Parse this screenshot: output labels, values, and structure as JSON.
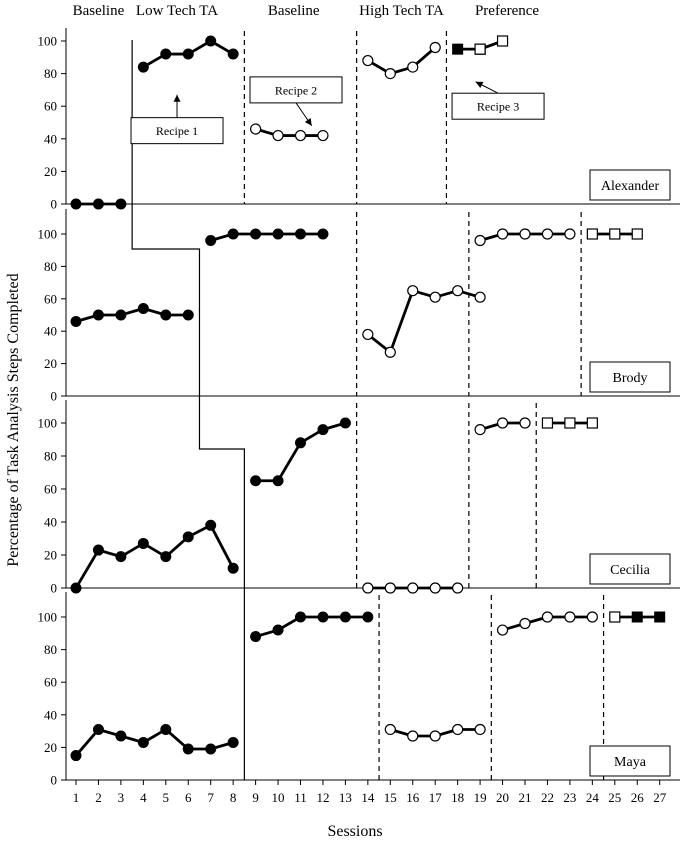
{
  "chart_data": {
    "type": "line",
    "ylabel": "Percentage of Task Analysis Steps Completed",
    "xlabel": "Sessions",
    "x_ticks": [
      1,
      2,
      3,
      4,
      5,
      6,
      7,
      8,
      9,
      10,
      11,
      12,
      13,
      14,
      15,
      16,
      17,
      18,
      19,
      20,
      21,
      22,
      23,
      24,
      25,
      26,
      27
    ],
    "y_ticks": [
      0,
      20,
      40,
      60,
      80,
      100
    ],
    "ylim": [
      0,
      100
    ],
    "xlim": [
      1,
      27
    ],
    "grid": false,
    "phase_labels": [
      {
        "text": "Baseline",
        "session": 2
      },
      {
        "text": "Low Tech TA",
        "session": 5.5
      },
      {
        "text": "Baseline",
        "session": 10.7
      },
      {
        "text": "High Tech TA",
        "session": 15.5
      },
      {
        "text": "Preference",
        "session": 20.2
      }
    ],
    "callouts": [
      {
        "text": "Recipe 1",
        "panel": 0,
        "box_session": 5.5,
        "box_y": 45,
        "target_session": 5.5,
        "target_y": 67
      },
      {
        "text": "Recipe 2",
        "panel": 0,
        "box_session": 10.8,
        "box_y": 70,
        "target_session": 11.5,
        "target_y": 48
      },
      {
        "text": "Recipe 3",
        "panel": 0,
        "box_session": 19.8,
        "box_y": 60,
        "target_session": 18.8,
        "target_y": 75
      }
    ],
    "panels": [
      {
        "participant": "Alexander",
        "phase_change_sessions": [
          3.5,
          8.5,
          13.5,
          17.5
        ],
        "series": [
          {
            "x": [
              1,
              2,
              3
            ],
            "y": [
              0,
              0,
              0
            ],
            "marker": "filled-circle"
          },
          {
            "x": [
              4,
              5,
              6,
              7,
              8
            ],
            "y": [
              84,
              92,
              92,
              100,
              92
            ],
            "marker": "filled-circle"
          },
          {
            "x": [
              9,
              10,
              11,
              12
            ],
            "y": [
              46,
              42,
              42,
              42
            ],
            "marker": "open-circle"
          },
          {
            "x": [
              14,
              15,
              16,
              17
            ],
            "y": [
              88,
              80,
              84,
              96
            ],
            "marker": "open-circle"
          },
          {
            "x": [
              18,
              19
            ],
            "y": [
              95,
              95
            ],
            "marker": [
              "filled-square",
              "open-square"
            ]
          },
          {
            "x": [
              19,
              20
            ],
            "y": [
              95,
              100
            ],
            "marker": [
              "open-square",
              "open-square"
            ]
          }
        ]
      },
      {
        "participant": "Brody",
        "phase_change_sessions": [
          6.5,
          13.5,
          18.5,
          23.5
        ],
        "series": [
          {
            "x": [
              1,
              2,
              3,
              4,
              5,
              6
            ],
            "y": [
              46,
              50,
              50,
              54,
              50,
              50
            ],
            "marker": "filled-circle"
          },
          {
            "x": [
              7,
              8,
              9,
              10,
              11,
              12
            ],
            "y": [
              96,
              100,
              100,
              100,
              100,
              100
            ],
            "marker": "filled-circle"
          },
          {
            "x": [
              14,
              15,
              16,
              17,
              18,
              19
            ],
            "y": [
              38,
              27,
              65,
              61,
              65,
              61
            ],
            "marker": "open-circle"
          },
          {
            "x": [
              19,
              20,
              21,
              22,
              23
            ],
            "y": [
              96,
              100,
              100,
              100,
              100
            ],
            "marker": "open-circle"
          },
          {
            "x": [
              24,
              25,
              26
            ],
            "y": [
              100,
              100,
              100
            ],
            "marker": "open-square"
          }
        ]
      },
      {
        "participant": "Cecilia",
        "phase_change_sessions": [
          8.5,
          13.5,
          18.5,
          21.5
        ],
        "series": [
          {
            "x": [
              1,
              2,
              3,
              4,
              5,
              6,
              7,
              8
            ],
            "y": [
              0,
              23,
              19,
              27,
              19,
              31,
              38,
              12
            ],
            "marker": "filled-circle"
          },
          {
            "x": [
              9,
              10,
              11,
              12,
              13
            ],
            "y": [
              65,
              65,
              88,
              96,
              100
            ],
            "marker": "filled-circle"
          },
          {
            "x": [
              14,
              15,
              16,
              17,
              18
            ],
            "y": [
              0,
              0,
              0,
              0,
              0
            ],
            "marker": "open-circle"
          },
          {
            "x": [
              19,
              20,
              21
            ],
            "y": [
              96,
              100,
              100
            ],
            "marker": "open-circle"
          },
          {
            "x": [
              22,
              23,
              24
            ],
            "y": [
              100,
              100,
              100
            ],
            "marker": "open-square"
          }
        ]
      },
      {
        "participant": "Maya",
        "phase_change_sessions": [
          8.5,
          14.5,
          19.5,
          24.5
        ],
        "series": [
          {
            "x": [
              1,
              2,
              3,
              4,
              5,
              6,
              7,
              8
            ],
            "y": [
              15,
              31,
              27,
              23,
              31,
              19,
              19,
              23
            ],
            "marker": "filled-circle"
          },
          {
            "x": [
              9,
              10,
              11,
              12,
              13,
              14
            ],
            "y": [
              88,
              92,
              100,
              100,
              100,
              100
            ],
            "marker": "filled-circle"
          },
          {
            "x": [
              15,
              16,
              17,
              18,
              19
            ],
            "y": [
              31,
              27,
              27,
              31,
              31
            ],
            "marker": "open-circle"
          },
          {
            "x": [
              20,
              21,
              22,
              23,
              24
            ],
            "y": [
              92,
              96,
              100,
              100,
              100
            ],
            "marker": "open-circle"
          },
          {
            "x": [
              25,
              26,
              27
            ],
            "y": [
              100,
              100,
              100
            ],
            "marker": [
              "open-square",
              "filled-square",
              "filled-square"
            ]
          }
        ]
      }
    ]
  }
}
